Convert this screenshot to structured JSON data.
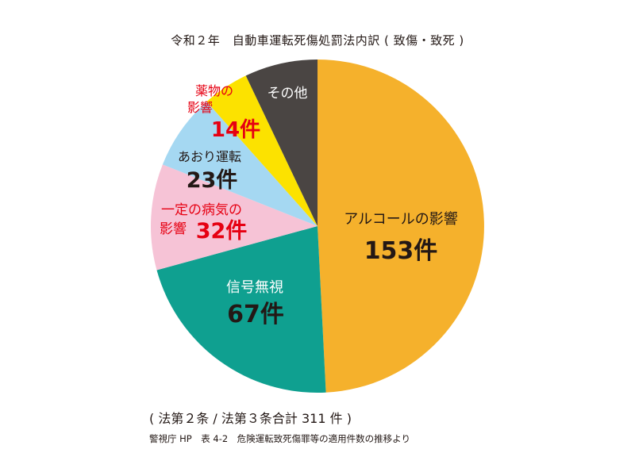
{
  "title": "令和２年　自動車運転死傷処罰法内訳 ( 致傷・致死 )",
  "total_note": "( 法第２条 / 法第３条合計 311 件 )",
  "source_note": "警視庁 HP　表 4-2　危険運転致死傷罪等の適用件数の推移より",
  "unit": "件",
  "colors": {
    "text_dark": "#231815",
    "text_red": "#e60012",
    "text_white": "#ffffff"
  },
  "chart_data": {
    "type": "pie",
    "total": 311,
    "start": "12 o'clock",
    "direction": "clockwise",
    "slices": [
      {
        "label": "アルコールの影響",
        "value": 153,
        "value_text": "153件",
        "color": "#f5b12c",
        "label_color": "#231815",
        "value_color": "#231815"
      },
      {
        "label": "信号無視",
        "value": 67,
        "value_text": "67件",
        "color": "#0fa090",
        "label_color": "#ffffff",
        "value_color": "#231815"
      },
      {
        "label": "一定の病気の影響",
        "value": 32,
        "value_text": "32件",
        "color": "#f6c3d6",
        "label_color": "#e60012",
        "value_color": "#e60012"
      },
      {
        "label": "あおり運転",
        "value": 23,
        "value_text": "23件",
        "color": "#a5d8f2",
        "label_color": "#231815",
        "value_color": "#231815"
      },
      {
        "label": "薬物の影響",
        "value": 14,
        "value_text": "14件",
        "color": "#fce200",
        "label_color": "#e60012",
        "value_color": "#e60012"
      },
      {
        "label": "その他",
        "value": 22,
        "value_text": "",
        "color": "#4a4543",
        "label_color": "#ffffff",
        "value_color": "#ffffff"
      }
    ]
  }
}
